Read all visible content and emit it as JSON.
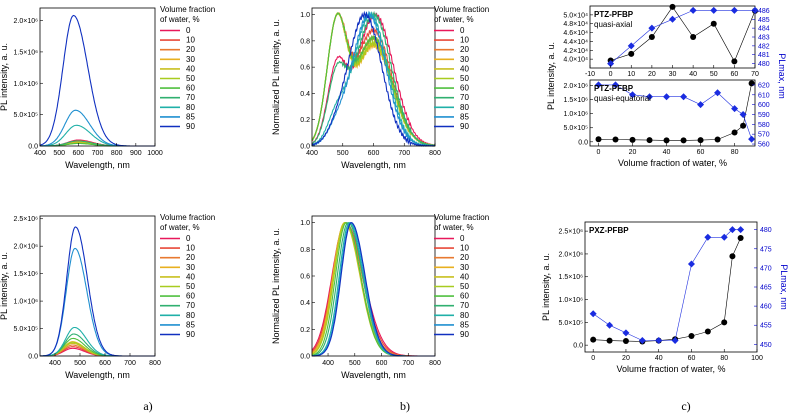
{
  "legend_values": [
    "0",
    "10",
    "20",
    "30",
    "40",
    "50",
    "60",
    "70",
    "80",
    "85",
    "90"
  ],
  "legend_colors": [
    "#e8185a",
    "#e84a3a",
    "#e87a30",
    "#e8b020",
    "#c8c020",
    "#a8cc20",
    "#50c040",
    "#30b070",
    "#20b0a8",
    "#2090d0",
    "#1030c0"
  ],
  "legend_title": [
    "Volume fraction",
    "of water, %"
  ],
  "panel_labels": [
    "a)",
    "b)",
    "c)"
  ],
  "chart_data": [
    {
      "id": "a-top",
      "type": "line",
      "xlabel": "Wavelength, nm",
      "ylabel": "PL intensity, a. u.",
      "xlim": [
        400,
        1000
      ],
      "ylim": [
        0,
        2200000
      ],
      "xticks": [
        "400",
        "500",
        "600",
        "700",
        "800",
        "900",
        "1000"
      ],
      "yticks": [
        {
          "v": 0,
          "t": "0.0"
        },
        {
          "v": 500000,
          "t": "5.0×10⁵"
        },
        {
          "v": 1000000,
          "t": "1.0×10⁶"
        },
        {
          "v": 1500000,
          "t": "1.5×10⁶"
        },
        {
          "v": 2000000,
          "t": "2.0×10⁶"
        }
      ],
      "series": [
        {
          "name": "0",
          "peak": 600,
          "amp": 95000,
          "w": 55
        },
        {
          "name": "10",
          "peak": 600,
          "amp": 85000,
          "w": 55
        },
        {
          "name": "20",
          "peak": 600,
          "amp": 75000,
          "w": 55
        },
        {
          "name": "30",
          "peak": 600,
          "amp": 65000,
          "w": 55
        },
        {
          "name": "40",
          "peak": 600,
          "amp": 55000,
          "w": 55
        },
        {
          "name": "50",
          "peak": 600,
          "amp": 45000,
          "w": 55
        },
        {
          "name": "60",
          "peak": 598,
          "amp": 40000,
          "w": 55
        },
        {
          "name": "70",
          "peak": 596,
          "amp": 80000,
          "w": 55
        },
        {
          "name": "80",
          "peak": 590,
          "amp": 330000,
          "w": 55
        },
        {
          "name": "85",
          "peak": 585,
          "amp": 570000,
          "w": 55
        },
        {
          "name": "90",
          "peak": 575,
          "amp": 2080000,
          "w": 55
        }
      ]
    },
    {
      "id": "b-top",
      "type": "line",
      "xlabel": "Wavelength, nm",
      "ylabel": "Normalized PL intensity, a. u.",
      "xlim": [
        400,
        800
      ],
      "ylim": [
        0,
        1.05
      ],
      "xticks": [
        "400",
        "500",
        "600",
        "700",
        "800"
      ],
      "yticks": [
        {
          "v": 0,
          "t": "0.0"
        },
        {
          "v": 0.2,
          "t": "0.2"
        },
        {
          "v": 0.4,
          "t": "0.4"
        },
        {
          "v": 0.6,
          "t": "0.6"
        },
        {
          "v": 0.8,
          "t": "0.8"
        },
        {
          "v": 1.0,
          "t": "1.0"
        }
      ],
      "series": [
        {
          "name": "0",
          "p1": 480,
          "a1": 0.55,
          "w1": 30,
          "p2": 605,
          "a2": 1.0,
          "w2": 60
        },
        {
          "name": "10",
          "p1": 480,
          "a1": 0.95,
          "w1": 32,
          "p2": 600,
          "a2": 0.95,
          "w2": 60
        },
        {
          "name": "20",
          "p1": 480,
          "a1": 0.98,
          "w1": 32,
          "p2": 600,
          "a2": 0.9,
          "w2": 60
        },
        {
          "name": "30",
          "p1": 480,
          "a1": 1.0,
          "w1": 32,
          "p2": 600,
          "a2": 0.85,
          "w2": 60
        },
        {
          "name": "40",
          "p1": 480,
          "a1": 0.98,
          "w1": 32,
          "p2": 600,
          "a2": 0.85,
          "w2": 60
        },
        {
          "name": "50",
          "p1": 480,
          "a1": 0.97,
          "w1": 32,
          "p2": 600,
          "a2": 0.85,
          "w2": 60
        },
        {
          "name": "60",
          "p1": 480,
          "a1": 0.95,
          "w1": 32,
          "p2": 600,
          "a2": 0.88,
          "w2": 60
        },
        {
          "name": "70",
          "p1": 480,
          "a1": 0.5,
          "w1": 30,
          "p2": 600,
          "a2": 1.0,
          "w2": 58
        },
        {
          "name": "80",
          "p1": 480,
          "a1": 0.2,
          "w1": 30,
          "p2": 590,
          "a2": 1.0,
          "w2": 55
        },
        {
          "name": "85",
          "p1": 480,
          "a1": 0.1,
          "w1": 30,
          "p2": 585,
          "a2": 1.0,
          "w2": 55
        },
        {
          "name": "90",
          "p1": 480,
          "a1": 0.05,
          "w1": 30,
          "p2": 572,
          "a2": 1.0,
          "w2": 55
        }
      ]
    },
    {
      "id": "c-top1",
      "type": "scatter",
      "title": "PTZ-PFBP",
      "subtitle": "quasi-axial",
      "xlim": [
        -10,
        70
      ],
      "ylim": [
        38000,
        52000
      ],
      "y2lim": [
        479.5,
        486.5
      ],
      "xticks": [
        "-10",
        "0",
        "10",
        "20",
        "30",
        "40",
        "50",
        "60",
        "70"
      ],
      "yticks": [
        {
          "v": 40000,
          "t": "4.0×10⁴"
        },
        {
          "v": 42000,
          "t": "4.2×10⁴"
        },
        {
          "v": 44000,
          "t": "4.4×10⁴"
        },
        {
          "v": 46000,
          "t": "4.6×10⁴"
        },
        {
          "v": 48000,
          "t": "4.8×10⁴"
        },
        {
          "v": 50000,
          "t": "5.0×10⁴"
        }
      ],
      "y2ticks": [
        "480",
        "481",
        "482",
        "483",
        "484",
        "485",
        "486"
      ],
      "x": [
        0,
        10,
        20,
        30,
        40,
        50,
        60,
        70
      ],
      "intensity": [
        39700,
        41200,
        45000,
        51800,
        45000,
        48000,
        39500,
        50900
      ],
      "lambda_max": [
        480,
        482,
        484,
        485,
        486,
        486,
        486,
        486
      ]
    },
    {
      "id": "c-top2",
      "type": "scatter",
      "title": "PTZ-PFBP",
      "subtitle": "quasi-equatorial",
      "xlabel": "Volume fraction of water, %",
      "xlim": [
        -5,
        92
      ],
      "ylim": [
        -150000,
        2200000
      ],
      "y2lim": [
        558,
        625
      ],
      "xticks": [
        "0",
        "20",
        "40",
        "60",
        "80"
      ],
      "yticks": [
        {
          "v": 0,
          "t": "0.0"
        },
        {
          "v": 500000,
          "t": "5.0×10⁵"
        },
        {
          "v": 1000000,
          "t": "1.0×10⁶"
        },
        {
          "v": 1500000,
          "t": "1.5×10⁶"
        },
        {
          "v": 2000000,
          "t": "2.0×10⁶"
        }
      ],
      "y2ticks": [
        "560",
        "570",
        "580",
        "590",
        "600",
        "610",
        "620"
      ],
      "x": [
        0,
        10,
        20,
        30,
        40,
        50,
        60,
        70,
        80,
        85,
        90
      ],
      "intensity": [
        90000,
        80000,
        70000,
        60000,
        50000,
        50000,
        60000,
        80000,
        330000,
        570000,
        2080000
      ],
      "lambda_max": [
        620,
        620,
        610,
        608,
        608,
        608,
        600,
        612,
        596,
        590,
        565
      ]
    },
    {
      "id": "a-bottom",
      "type": "line",
      "xlabel": "Wavelength, nm",
      "ylabel": "PL intensity, a. u.",
      "xlim": [
        340,
        800
      ],
      "ylim": [
        0,
        2550000
      ],
      "xticks": [
        "400",
        "500",
        "600",
        "700",
        "800"
      ],
      "yticks": [
        {
          "v": 0,
          "t": "0.0"
        },
        {
          "v": 500000,
          "t": "5.0×10⁵"
        },
        {
          "v": 1000000,
          "t": "1.0×10⁶"
        },
        {
          "v": 1500000,
          "t": "1.5×10⁶"
        },
        {
          "v": 2000000,
          "t": "2.0×10⁶"
        },
        {
          "v": 2500000,
          "t": "2.5×10⁶"
        }
      ],
      "series": [
        {
          "name": "0",
          "peak": 470,
          "amp": 140000,
          "w": 35
        },
        {
          "name": "10",
          "peak": 470,
          "amp": 170000,
          "w": 35
        },
        {
          "name": "20",
          "peak": 470,
          "amp": 200000,
          "w": 35
        },
        {
          "name": "30",
          "peak": 470,
          "amp": 260000,
          "w": 35
        },
        {
          "name": "40",
          "peak": 470,
          "amp": 230000,
          "w": 35
        },
        {
          "name": "50",
          "peak": 470,
          "amp": 250000,
          "w": 35
        },
        {
          "name": "60",
          "peak": 472,
          "amp": 320000,
          "w": 35
        },
        {
          "name": "70",
          "peak": 475,
          "amp": 400000,
          "w": 35
        },
        {
          "name": "80",
          "peak": 478,
          "amp": 520000,
          "w": 35
        },
        {
          "name": "85",
          "peak": 480,
          "amp": 1960000,
          "w": 35
        },
        {
          "name": "90",
          "peak": 482,
          "amp": 2350000,
          "w": 35
        }
      ]
    },
    {
      "id": "b-bottom",
      "type": "line",
      "xlabel": "Wavelength, nm",
      "ylabel": "Normalized PL intensity, a. u.",
      "xlim": [
        340,
        800
      ],
      "ylim": [
        0,
        1.05
      ],
      "xticks": [
        "400",
        "500",
        "600",
        "700",
        "800"
      ],
      "yticks": [
        {
          "v": 0,
          "t": "0.0"
        },
        {
          "v": 0.2,
          "t": "0.2"
        },
        {
          "v": 0.4,
          "t": "0.4"
        },
        {
          "v": 0.6,
          "t": "0.6"
        },
        {
          "v": 0.8,
          "t": "0.8"
        },
        {
          "v": 1.0,
          "t": "1.0"
        }
      ],
      "series": [
        {
          "name": "0",
          "peak": 465,
          "amp": 1.0,
          "w": 50
        },
        {
          "name": "10",
          "peak": 465,
          "amp": 1.0,
          "w": 48
        },
        {
          "name": "20",
          "peak": 465,
          "amp": 1.0,
          "w": 46
        },
        {
          "name": "30",
          "peak": 462,
          "amp": 1.0,
          "w": 44
        },
        {
          "name": "40",
          "peak": 462,
          "amp": 1.0,
          "w": 42
        },
        {
          "name": "50",
          "peak": 465,
          "amp": 1.0,
          "w": 42
        },
        {
          "name": "60",
          "peak": 468,
          "amp": 1.0,
          "w": 40
        },
        {
          "name": "70",
          "peak": 475,
          "amp": 1.0,
          "w": 40
        },
        {
          "name": "80",
          "peak": 480,
          "amp": 1.0,
          "w": 38
        },
        {
          "name": "85",
          "peak": 484,
          "amp": 1.0,
          "w": 38
        },
        {
          "name": "90",
          "peak": 487,
          "amp": 1.0,
          "w": 38
        }
      ]
    },
    {
      "id": "c-bottom",
      "type": "scatter",
      "title": "PXZ-PFBP",
      "xlabel": "Volume fraction of water, %",
      "ylabel": "PL intensity, a. u.",
      "y2label": "PLmax, nm",
      "xlim": [
        -5,
        100
      ],
      "ylim": [
        -150000,
        2700000
      ],
      "y2lim": [
        448,
        482
      ],
      "xticks": [
        "0",
        "20",
        "40",
        "60",
        "80",
        "100"
      ],
      "yticks": [
        {
          "v": 0,
          "t": "0.0"
        },
        {
          "v": 500000,
          "t": "5.0×10⁵"
        },
        {
          "v": 1000000,
          "t": "1.0×10⁶"
        },
        {
          "v": 1500000,
          "t": "1.5×10⁶"
        },
        {
          "v": 2000000,
          "t": "2.0×10⁶"
        },
        {
          "v": 2500000,
          "t": "2.5×10⁶"
        }
      ],
      "y2ticks": [
        "450",
        "455",
        "460",
        "465",
        "470",
        "475",
        "480"
      ],
      "x": [
        0,
        10,
        20,
        30,
        40,
        50,
        60,
        70,
        80,
        85,
        90
      ],
      "intensity": [
        120000,
        100000,
        90000,
        80000,
        100000,
        130000,
        200000,
        300000,
        500000,
        1950000,
        2350000
      ],
      "lambda_max": [
        458,
        455,
        453,
        451,
        451,
        451,
        471,
        478,
        478,
        480,
        480
      ]
    }
  ],
  "c_top_labels": {
    "ylabel": "PL intensity, a. u.",
    "y2label": "PLmax, nm"
  }
}
